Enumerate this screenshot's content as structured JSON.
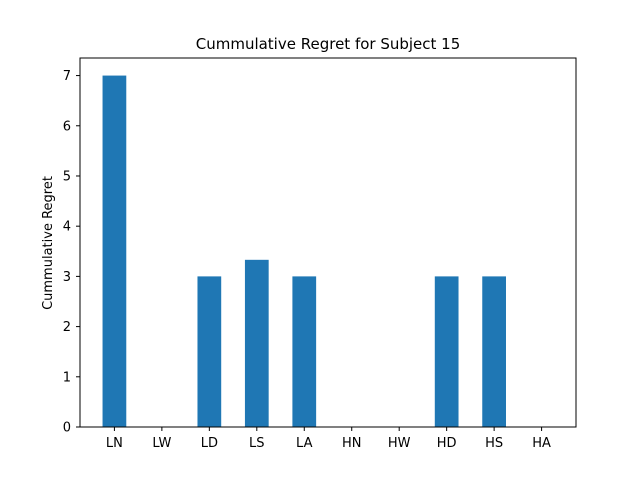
{
  "chart_data": {
    "type": "bar",
    "title": "Cummulative Regret for Subject 15",
    "xlabel": "",
    "ylabel": "Cummulative Regret",
    "categories": [
      "LN",
      "LW",
      "LD",
      "LS",
      "LA",
      "HN",
      "HW",
      "HD",
      "HS",
      "HA"
    ],
    "values": [
      7,
      0,
      3,
      3.33,
      3,
      0,
      0,
      3,
      3,
      0
    ],
    "ylim": [
      0,
      7.35
    ],
    "yticks": [
      0,
      1,
      2,
      3,
      4,
      5,
      6,
      7
    ],
    "grid": false,
    "bar_color": "#1f77b4"
  }
}
